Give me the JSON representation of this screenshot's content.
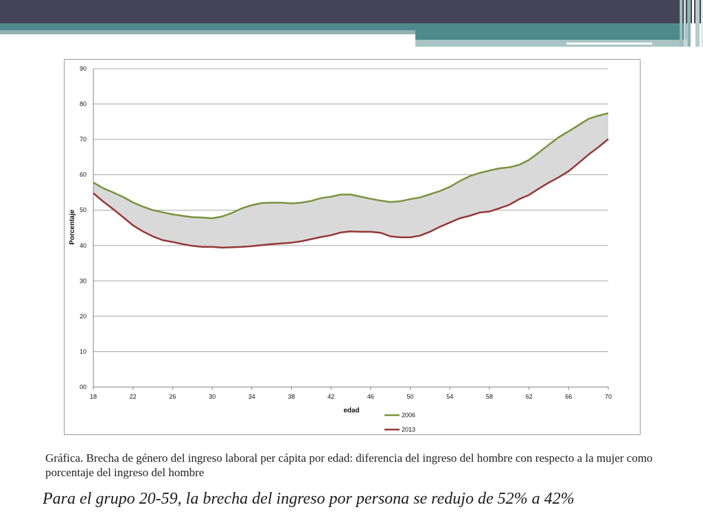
{
  "slide": {
    "caption": "Gráfica. Brecha de género del ingreso laboral per cápita por edad: diferencia del ingreso del hombre con respecto a la mujer como porcentaje del ingreso del hombre",
    "headline": "Para el grupo 20-59, la brecha del  ingreso por persona se redujo de 52% a 42%",
    "colors": {
      "topbar": "#434457",
      "accent": "#4f8a8b"
    }
  },
  "chart_data": {
    "type": "line",
    "title": "",
    "xlabel": "edad",
    "ylabel": "Porcentaje",
    "xlim": [
      18,
      70
    ],
    "ylim": [
      0,
      90
    ],
    "x_ticks": [
      "18",
      "22",
      "26",
      "30",
      "34",
      "38",
      "42",
      "46",
      "50",
      "54",
      "58",
      "62",
      "66",
      "70"
    ],
    "y_ticks": [
      "00",
      "10",
      "20",
      "30",
      "40",
      "50",
      "60",
      "70",
      "80",
      "90"
    ],
    "grid": "horizontal",
    "legend_position": "bottom-right",
    "shaded_gap_color": "#d9d9d9",
    "x": [
      18,
      19,
      20,
      21,
      22,
      23,
      24,
      25,
      26,
      27,
      28,
      29,
      30,
      31,
      32,
      33,
      34,
      35,
      36,
      37,
      38,
      39,
      40,
      41,
      42,
      43,
      44,
      45,
      46,
      47,
      48,
      49,
      50,
      51,
      52,
      53,
      54,
      55,
      56,
      57,
      58,
      59,
      60,
      61,
      62,
      63,
      64,
      65,
      66,
      67,
      68,
      69,
      70
    ],
    "series": [
      {
        "name": "2006",
        "color": "#77933c",
        "values": [
          57.8,
          56.2,
          55.0,
          53.7,
          52.2,
          51.0,
          50.0,
          49.4,
          48.8,
          48.4,
          48.0,
          47.9,
          47.7,
          48.2,
          49.2,
          50.5,
          51.4,
          52.0,
          52.1,
          52.1,
          51.9,
          52.1,
          52.6,
          53.4,
          53.8,
          54.4,
          54.4,
          53.8,
          53.2,
          52.7,
          52.3,
          52.5,
          53.1,
          53.6,
          54.5,
          55.4,
          56.6,
          58.2,
          59.6,
          60.5,
          61.2,
          61.8,
          62.1,
          62.8,
          64.2,
          66.3,
          68.5,
          70.6,
          72.3,
          74.0,
          75.8,
          76.7,
          77.4
        ]
      },
      {
        "name": "2013",
        "color": "#953735",
        "values": [
          54.8,
          52.4,
          50.3,
          48.0,
          45.7,
          44.0,
          42.6,
          41.5,
          41.0,
          40.4,
          39.9,
          39.6,
          39.6,
          39.4,
          39.5,
          39.6,
          39.8,
          40.1,
          40.4,
          40.6,
          40.8,
          41.2,
          41.8,
          42.4,
          42.9,
          43.7,
          44.0,
          43.9,
          43.9,
          43.6,
          42.6,
          42.3,
          42.3,
          42.8,
          43.9,
          45.3,
          46.5,
          47.7,
          48.4,
          49.3,
          49.6,
          50.5,
          51.5,
          53.1,
          54.3,
          56.1,
          57.8,
          59.3,
          61.0,
          63.3,
          65.7,
          67.8,
          70.1
        ]
      }
    ]
  }
}
